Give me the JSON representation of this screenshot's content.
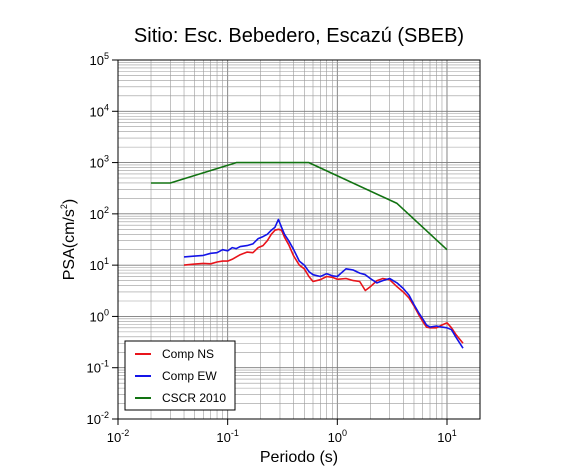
{
  "chart_data": {
    "type": "line",
    "title": "Sitio: Esc. Bebedero, Escazú (SBEB)",
    "xlabel": "Periodo (s)",
    "ylabel_main": "PSA(cm/s",
    "ylabel_sup": "2",
    "ylabel_tail": ")",
    "xscale": "log",
    "yscale": "log",
    "xlim": [
      0.01,
      20
    ],
    "ylim": [
      0.01,
      100000
    ],
    "grid": true,
    "legend_position": "bottom-left",
    "x_ticks": [
      {
        "base": "10",
        "exp": "-2",
        "value": 0.01
      },
      {
        "base": "10",
        "exp": "-1",
        "value": 0.1
      },
      {
        "base": "10",
        "exp": "0",
        "value": 1
      },
      {
        "base": "10",
        "exp": "1",
        "value": 10
      }
    ],
    "y_ticks": [
      {
        "base": "10",
        "exp": "-2",
        "value": 0.01
      },
      {
        "base": "10",
        "exp": "-1",
        "value": 0.1
      },
      {
        "base": "10",
        "exp": "0",
        "value": 1
      },
      {
        "base": "10",
        "exp": "1",
        "value": 10
      },
      {
        "base": "10",
        "exp": "2",
        "value": 100
      },
      {
        "base": "10",
        "exp": "3",
        "value": 1000
      },
      {
        "base": "10",
        "exp": "4",
        "value": 10000
      },
      {
        "base": "10",
        "exp": "5",
        "value": 100000
      }
    ],
    "series": [
      {
        "name": "Comp NS",
        "color": "#e8141b",
        "points": [
          [
            0.04,
            10.0
          ],
          [
            0.05,
            10.5
          ],
          [
            0.06,
            10.8
          ],
          [
            0.07,
            10.6
          ],
          [
            0.08,
            11.5
          ],
          [
            0.09,
            12.0
          ],
          [
            0.1,
            12.0
          ],
          [
            0.11,
            13.0
          ],
          [
            0.12,
            14.5
          ],
          [
            0.13,
            16.0
          ],
          [
            0.15,
            18.0
          ],
          [
            0.17,
            17.5
          ],
          [
            0.19,
            22.0
          ],
          [
            0.21,
            24.0
          ],
          [
            0.23,
            30.0
          ],
          [
            0.25,
            40.0
          ],
          [
            0.27,
            48.0
          ],
          [
            0.29,
            50.0
          ],
          [
            0.31,
            48.0
          ],
          [
            0.33,
            35.0
          ],
          [
            0.36,
            25.0
          ],
          [
            0.4,
            15.0
          ],
          [
            0.45,
            10.0
          ],
          [
            0.5,
            8.5
          ],
          [
            0.55,
            6.0
          ],
          [
            0.6,
            4.8
          ],
          [
            0.7,
            5.2
          ],
          [
            0.8,
            6.0
          ],
          [
            0.9,
            5.8
          ],
          [
            1.0,
            5.3
          ],
          [
            1.2,
            5.5
          ],
          [
            1.4,
            5.0
          ],
          [
            1.6,
            4.8
          ],
          [
            1.8,
            3.2
          ],
          [
            2.0,
            3.8
          ],
          [
            2.3,
            5.0
          ],
          [
            2.6,
            5.5
          ],
          [
            3.0,
            5.2
          ],
          [
            3.5,
            3.8
          ],
          [
            4.0,
            3.0
          ],
          [
            4.5,
            2.3
          ],
          [
            5.0,
            1.6
          ],
          [
            5.5,
            1.1
          ],
          [
            6.0,
            0.8
          ],
          [
            6.5,
            0.62
          ],
          [
            7.0,
            0.6
          ],
          [
            8.0,
            0.6
          ],
          [
            9.0,
            0.68
          ],
          [
            10.0,
            0.75
          ],
          [
            11.0,
            0.6
          ],
          [
            12.0,
            0.45
          ],
          [
            14.0,
            0.3
          ]
        ]
      },
      {
        "name": "Comp EW",
        "color": "#1414e8",
        "points": [
          [
            0.04,
            14.5
          ],
          [
            0.05,
            15.0
          ],
          [
            0.06,
            15.5
          ],
          [
            0.07,
            17.0
          ],
          [
            0.08,
            17.5
          ],
          [
            0.09,
            20.0
          ],
          [
            0.1,
            19.0
          ],
          [
            0.11,
            22.0
          ],
          [
            0.12,
            21.0
          ],
          [
            0.13,
            23.0
          ],
          [
            0.15,
            24.0
          ],
          [
            0.17,
            26.0
          ],
          [
            0.19,
            33.0
          ],
          [
            0.21,
            36.0
          ],
          [
            0.23,
            40.0
          ],
          [
            0.25,
            48.0
          ],
          [
            0.27,
            55.0
          ],
          [
            0.29,
            78.0
          ],
          [
            0.31,
            55.0
          ],
          [
            0.33,
            40.0
          ],
          [
            0.36,
            30.0
          ],
          [
            0.4,
            20.0
          ],
          [
            0.45,
            12.0
          ],
          [
            0.5,
            10.0
          ],
          [
            0.55,
            7.5
          ],
          [
            0.6,
            6.5
          ],
          [
            0.7,
            6.0
          ],
          [
            0.8,
            6.8
          ],
          [
            0.9,
            6.2
          ],
          [
            1.0,
            6.0
          ],
          [
            1.2,
            8.5
          ],
          [
            1.4,
            8.0
          ],
          [
            1.6,
            7.0
          ],
          [
            1.8,
            6.5
          ],
          [
            2.0,
            5.5
          ],
          [
            2.3,
            4.5
          ],
          [
            2.6,
            5.0
          ],
          [
            3.0,
            5.5
          ],
          [
            3.5,
            4.5
          ],
          [
            4.0,
            3.5
          ],
          [
            4.5,
            2.6
          ],
          [
            5.0,
            1.7
          ],
          [
            5.5,
            1.2
          ],
          [
            6.0,
            0.9
          ],
          [
            6.5,
            0.68
          ],
          [
            7.0,
            0.62
          ],
          [
            8.0,
            0.65
          ],
          [
            9.0,
            0.62
          ],
          [
            10.0,
            0.6
          ],
          [
            11.0,
            0.55
          ],
          [
            12.0,
            0.4
          ],
          [
            14.0,
            0.24
          ]
        ]
      },
      {
        "name": "CSCR 2010",
        "color": "#127312",
        "points": [
          [
            0.02,
            400
          ],
          [
            0.03,
            400
          ],
          [
            0.12,
            1000
          ],
          [
            0.55,
            1000
          ],
          [
            3.5,
            160
          ],
          [
            10.0,
            20
          ]
        ]
      }
    ]
  }
}
